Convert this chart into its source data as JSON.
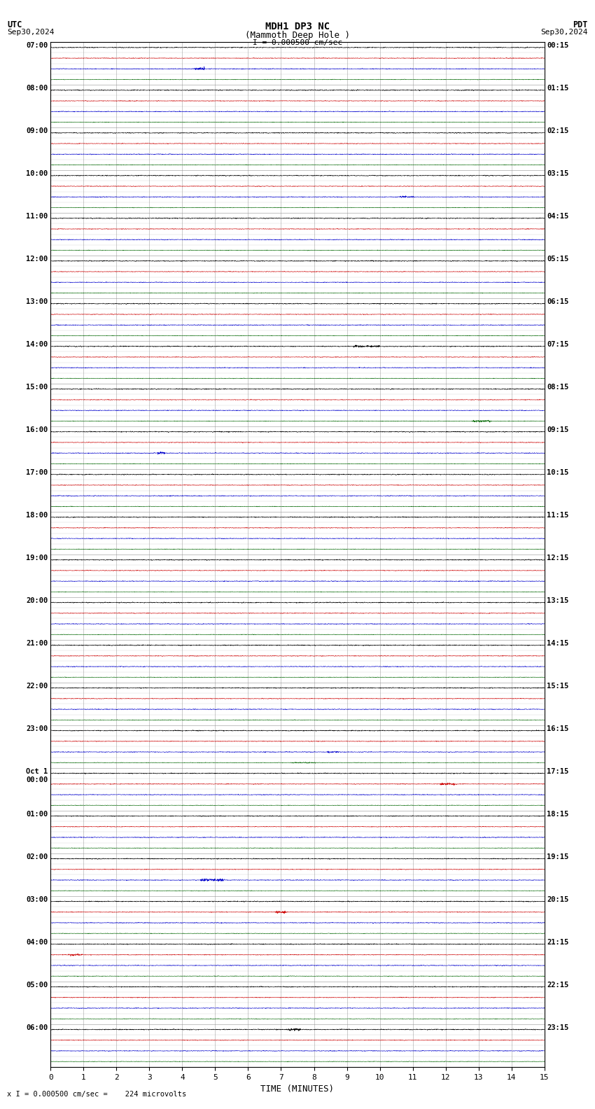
{
  "title_line1": "MDH1 DP3 NC",
  "title_line2": "(Mammoth Deep Hole )",
  "scale_label": "I = 0.000500 cm/sec",
  "footer_label": "x I = 0.000500 cm/sec =    224 microvolts",
  "utc_label": "UTC",
  "pdt_label": "PDT",
  "date_left": "Sep30,2024",
  "date_right": "Sep30,2024",
  "xlabel": "TIME (MINUTES)",
  "xmin": 0,
  "xmax": 15,
  "fig_width": 8.5,
  "fig_height": 15.84,
  "bg_color": "#ffffff",
  "grid_color": "#888888",
  "trace_colors": [
    "#000000",
    "#cc0000",
    "#0000cc",
    "#006600"
  ],
  "utc_times": [
    "07:00",
    "",
    "",
    "",
    "08:00",
    "",
    "",
    "",
    "09:00",
    "",
    "",
    "",
    "10:00",
    "",
    "",
    "",
    "11:00",
    "",
    "",
    "",
    "12:00",
    "",
    "",
    "",
    "13:00",
    "",
    "",
    "",
    "14:00",
    "",
    "",
    "",
    "15:00",
    "",
    "",
    "",
    "16:00",
    "",
    "",
    "",
    "17:00",
    "",
    "",
    "",
    "18:00",
    "",
    "",
    "",
    "19:00",
    "",
    "",
    "",
    "20:00",
    "",
    "",
    "",
    "21:00",
    "",
    "",
    "",
    "22:00",
    "",
    "",
    "",
    "23:00",
    "",
    "",
    "",
    "Oct 1\n00:00",
    "",
    "",
    "",
    "01:00",
    "",
    "",
    "",
    "02:00",
    "",
    "",
    "",
    "03:00",
    "",
    "",
    "",
    "04:00",
    "",
    "",
    "",
    "05:00",
    "",
    "",
    "",
    "06:00",
    "",
    "",
    ""
  ],
  "pdt_times": [
    "00:15",
    "",
    "",
    "",
    "01:15",
    "",
    "",
    "",
    "02:15",
    "",
    "",
    "",
    "03:15",
    "",
    "",
    "",
    "04:15",
    "",
    "",
    "",
    "05:15",
    "",
    "",
    "",
    "06:15",
    "",
    "",
    "",
    "07:15",
    "",
    "",
    "",
    "08:15",
    "",
    "",
    "",
    "09:15",
    "",
    "",
    "",
    "10:15",
    "",
    "",
    "",
    "11:15",
    "",
    "",
    "",
    "12:15",
    "",
    "",
    "",
    "13:15",
    "",
    "",
    "",
    "14:15",
    "",
    "",
    "",
    "15:15",
    "",
    "",
    "",
    "16:15",
    "",
    "",
    "",
    "17:15",
    "",
    "",
    "",
    "18:15",
    "",
    "",
    "",
    "19:15",
    "",
    "",
    "",
    "20:15",
    "",
    "",
    "",
    "21:15",
    "",
    "",
    "",
    "22:15",
    "",
    "",
    "",
    "23:15",
    "",
    "",
    ""
  ],
  "num_rows": 96,
  "noise_amplitude_black": 0.025,
  "noise_amplitude_red": 0.018,
  "noise_amplitude_blue": 0.02,
  "noise_amplitude_green": 0.015
}
